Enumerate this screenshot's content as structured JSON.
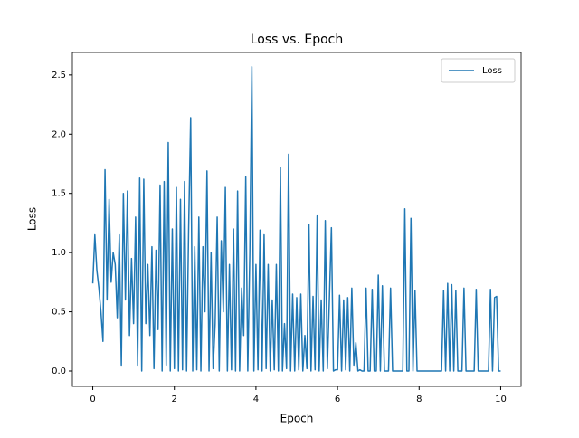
{
  "chart_data": {
    "type": "line",
    "title": "Loss vs. Epoch",
    "x_label": "Epoch",
    "y_label": "Loss",
    "x": [
      0,
      0.05,
      0.1,
      0.15,
      0.2,
      0.25,
      0.3,
      0.35,
      0.4,
      0.45,
      0.5,
      0.55,
      0.6,
      0.65,
      0.7,
      0.75,
      0.8,
      0.85,
      0.9,
      0.95,
      1,
      1.05,
      1.1,
      1.15,
      1.2,
      1.25,
      1.3,
      1.35,
      1.4,
      1.45,
      1.5,
      1.55,
      1.6,
      1.65,
      1.7,
      1.75,
      1.8,
      1.85,
      1.9,
      1.95,
      2,
      2.05,
      2.1,
      2.15,
      2.2,
      2.25,
      2.3,
      2.35,
      2.4,
      2.45,
      2.5,
      2.55,
      2.6,
      2.65,
      2.7,
      2.75,
      2.8,
      2.85,
      2.9,
      2.95,
      3,
      3.05,
      3.1,
      3.15,
      3.2,
      3.25,
      3.3,
      3.35,
      3.4,
      3.45,
      3.5,
      3.55,
      3.6,
      3.65,
      3.7,
      3.75,
      3.8,
      3.85,
      3.9,
      3.95,
      4,
      4.05,
      4.1,
      4.15,
      4.2,
      4.25,
      4.3,
      4.35,
      4.4,
      4.45,
      4.5,
      4.55,
      4.6,
      4.65,
      4.7,
      4.75,
      4.8,
      4.85,
      4.9,
      4.95,
      5,
      5.05,
      5.1,
      5.15,
      5.2,
      5.25,
      5.3,
      5.35,
      5.4,
      5.45,
      5.5,
      5.55,
      5.6,
      5.65,
      5.7,
      5.75,
      5.8,
      5.85,
      5.9,
      5.95,
      6,
      6.05,
      6.1,
      6.15,
      6.2,
      6.25,
      6.3,
      6.35,
      6.4,
      6.45,
      6.5,
      6.55,
      6.6,
      6.65,
      6.7,
      6.75,
      6.8,
      6.85,
      6.9,
      6.95,
      7,
      7.05,
      7.1,
      7.15,
      7.2,
      7.25,
      7.3,
      7.35,
      7.4,
      7.45,
      7.5,
      7.55,
      7.6,
      7.65,
      7.7,
      7.75,
      7.8,
      7.85,
      7.9,
      7.95,
      8,
      8.05,
      8.1,
      8.15,
      8.2,
      8.25,
      8.3,
      8.35,
      8.4,
      8.45,
      8.5,
      8.55,
      8.6,
      8.65,
      8.7,
      8.75,
      8.8,
      8.85,
      8.9,
      8.95,
      9,
      9.05,
      9.1,
      9.15,
      9.2,
      9.25,
      9.3,
      9.35,
      9.4,
      9.45,
      9.5,
      9.55,
      9.6,
      9.65,
      9.7,
      9.75,
      9.8,
      9.85,
      9.9,
      9.95,
      10
    ],
    "series": [
      {
        "name": "Loss",
        "color": "#1f77b4",
        "values": [
          0.74,
          1.15,
          0.85,
          0.7,
          0.5,
          0.25,
          1.7,
          0.6,
          1.45,
          0.75,
          1.0,
          0.9,
          0.45,
          1.15,
          0.05,
          1.5,
          0.6,
          1.52,
          0.3,
          0.95,
          0.4,
          1.3,
          0.05,
          1.63,
          0.0,
          1.62,
          0.4,
          0.9,
          0.3,
          1.05,
          0.02,
          1.02,
          0.35,
          1.57,
          0.0,
          1.6,
          0.05,
          1.93,
          0.0,
          1.2,
          0.02,
          1.55,
          0.0,
          1.45,
          0.01,
          1.6,
          0.0,
          1.2,
          2.14,
          0.0,
          1.05,
          0.01,
          1.3,
          0.0,
          1.05,
          0.5,
          1.69,
          0.0,
          1.0,
          0.02,
          0.4,
          1.3,
          0.0,
          1.1,
          0.5,
          1.55,
          0.0,
          0.9,
          0.01,
          1.2,
          0.0,
          1.52,
          0.0,
          0.7,
          0.3,
          1.64,
          0.0,
          1.0,
          2.57,
          0.0,
          0.9,
          0.01,
          1.19,
          0.0,
          1.15,
          0.02,
          0.9,
          0.0,
          0.6,
          0.01,
          0.9,
          0.0,
          1.72,
          0.0,
          0.4,
          0.02,
          1.83,
          0.0,
          0.65,
          0.0,
          0.62,
          0.01,
          0.65,
          0.0,
          0.3,
          0.02,
          1.24,
          0.0,
          0.63,
          0.01,
          1.31,
          0.0,
          0.6,
          0.0,
          1.27,
          0.02,
          0.6,
          1.21,
          0.0,
          0.01,
          0.01,
          0.64,
          0.0,
          0.6,
          0.01,
          0.62,
          0.0,
          0.7,
          0.05,
          0.24,
          0.0,
          0.01,
          0.0,
          0.0,
          0.7,
          0.0,
          0.0,
          0.69,
          0.0,
          0.0,
          0.81,
          0.0,
          0.72,
          0.0,
          0.0,
          0.0,
          0.7,
          0.0,
          0.0,
          0.0,
          0.0,
          0.0,
          0.0,
          1.37,
          0.0,
          0.0,
          1.29,
          0.0,
          0.68,
          0.0,
          0.0,
          0.0,
          0.0,
          0.0,
          0.0,
          0.0,
          0.0,
          0.0,
          0.0,
          0.0,
          0.0,
          0.0,
          0.68,
          0.0,
          0.74,
          0.0,
          0.73,
          0.0,
          0.68,
          0.0,
          0.0,
          0.0,
          0.7,
          0.0,
          0.0,
          0.0,
          0.0,
          0.0,
          0.69,
          0.0,
          0.0,
          0.0,
          0.0,
          0.0,
          0.0,
          0.69,
          0.0,
          0.62,
          0.63,
          0.0,
          0.0
        ]
      }
    ],
    "xlim": [
      -0.5,
      10.5
    ],
    "ylim": [
      -0.13,
      2.69
    ],
    "xticks": [
      0,
      2,
      4,
      6,
      8,
      10
    ],
    "yticks": [
      {
        "value": 0,
        "label": "0.0"
      },
      0.5,
      {
        "value": 1,
        "label": "1.0"
      },
      1.5,
      {
        "value": 2,
        "label": "2.0"
      },
      2.5
    ],
    "grid": false,
    "legend": "upper right"
  }
}
